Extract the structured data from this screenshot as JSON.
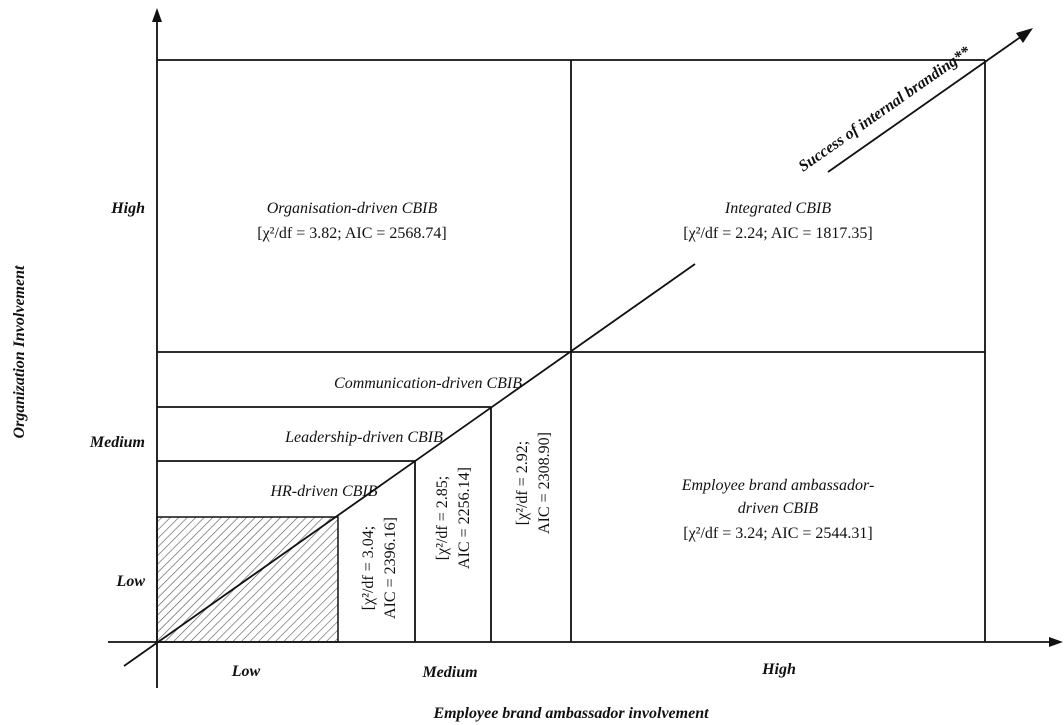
{
  "axes": {
    "x_title": "Employee brand ambassador involvement",
    "y_title": "Organization Involvement",
    "x_ticks": [
      "Low",
      "Medium",
      "High"
    ],
    "y_ticks": [
      "High",
      "Medium",
      "Low"
    ]
  },
  "arrow_label": "Success of internal branding**",
  "quadrants": {
    "organisation": {
      "name": "Organisation-driven CBIB",
      "stats": "[χ²/df = 3.82; AIC = 2568.74]"
    },
    "integrated": {
      "name": "Integrated CBIB",
      "stats": "[χ²/df = 2.24; AIC = 1817.35]"
    },
    "employee": {
      "name_line1": "Employee brand ambassador-",
      "name_line2": "driven CBIB",
      "stats": "[χ²/df = 3.24; AIC = 2544.31]"
    }
  },
  "nested": {
    "communication": {
      "name": "Communication-driven CBIB",
      "stats_line1": "[χ²/df = 2.92;",
      "stats_line2": "AIC = 2308.90]"
    },
    "leadership": {
      "name": "Leadership-driven CBIB",
      "stats_line1": "[χ²/df = 2.85;",
      "stats_line2": "AIC = 2256.14]"
    },
    "hr": {
      "name": "HR-driven CBIB",
      "stats_line1": "[χ²/df = 3.04;",
      "stats_line2": "AIC = 2396.16]"
    }
  }
}
